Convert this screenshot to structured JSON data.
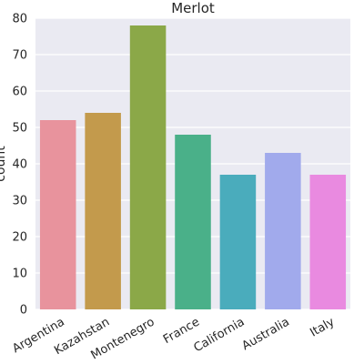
{
  "chart_data": {
    "type": "bar",
    "title": "Merlot",
    "xlabel": "",
    "ylabel": "count",
    "categories": [
      "Argentina",
      "Kazahstan",
      "Montenegro",
      "France",
      "California",
      "Australia",
      "Italy"
    ],
    "values": [
      52,
      54,
      78,
      48,
      37,
      43,
      37
    ],
    "ylim": [
      0,
      80
    ],
    "yticks": [
      0,
      10,
      20,
      30,
      40,
      50,
      60,
      70,
      80
    ],
    "grid": true,
    "legend": "none",
    "colors": {
      "background": "#EAEAF2",
      "bars": [
        "#E8939D",
        "#C39A4C",
        "#8BA848",
        "#4AB089",
        "#4AACBC",
        "#A1AAEC",
        "#E98AE0"
      ]
    }
  }
}
